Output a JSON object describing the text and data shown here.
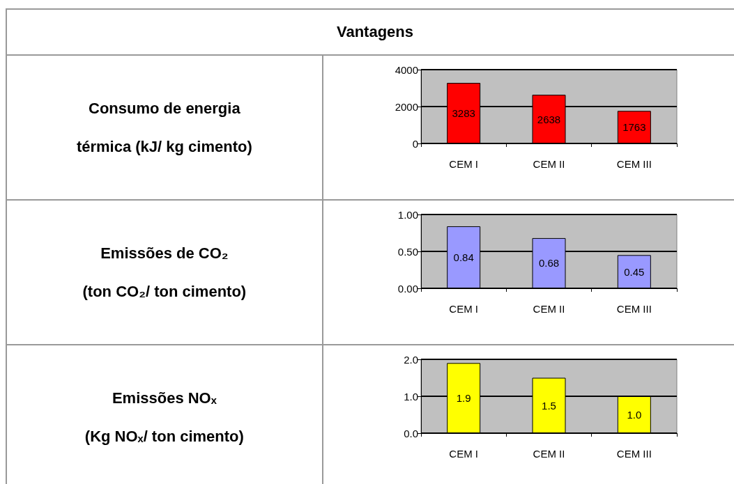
{
  "chart_data": [
    {
      "type": "bar",
      "title": "Vantagens",
      "ylabel": "Consumo de energia\ntérmica (kJ/ kg cimento)",
      "categories": [
        "CEM I",
        "CEM II",
        "CEM III"
      ],
      "values": [
        3283,
        2638,
        1763
      ],
      "color": "#ff0000",
      "ylim": [
        0,
        4000
      ],
      "yticks": [
        0,
        2000,
        4000
      ],
      "grid": "y",
      "data_labels": true
    },
    {
      "type": "bar",
      "ylabel": "Emissões de CO₂\n(ton CO₂/ ton cimento)",
      "categories": [
        "CEM I",
        "CEM II",
        "CEM III"
      ],
      "values": [
        0.84,
        0.68,
        0.45
      ],
      "color": "#9999ff",
      "ylim": [
        0,
        1
      ],
      "yticks": [
        {
          "value": 0,
          "label": "0.00"
        },
        {
          "value": 0.5,
          "label": "0.50"
        },
        {
          "value": 1,
          "label": "1.00"
        }
      ],
      "grid": "y",
      "data_labels": true
    },
    {
      "type": "bar",
      "ylabel": "Emissões NOₓ\n(Kg NOₓ/ ton cimento)",
      "categories": [
        "CEM I",
        "CEM II",
        "CEM III"
      ],
      "values": [
        1.9,
        1.5,
        1.0
      ],
      "value_labels": [
        "1.9",
        "1.5",
        "1.0"
      ],
      "color": "#ffff00",
      "ylim": [
        0,
        2
      ],
      "yticks": [
        {
          "value": 0,
          "label": "0.0"
        },
        {
          "value": 1,
          "label": "1.0"
        },
        {
          "value": 2,
          "label": "2.0"
        }
      ],
      "grid": "y"
    }
  ]
}
